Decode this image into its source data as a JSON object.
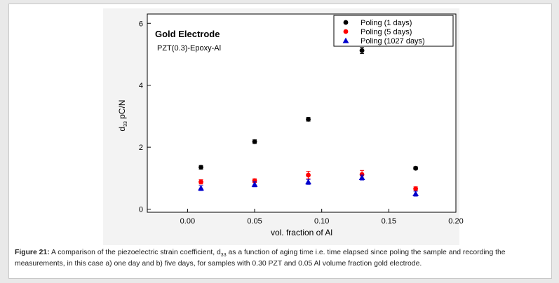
{
  "caption": {
    "label": "Figure 21:",
    "text_before_sub": "A comparison of the piezoelectric strain coefficient, d",
    "subscript": "33",
    "text_after_sub": " as a function of aging time i.e. time elapsed since poling the sample and recording the measurements, in this case a) one day and b) five days, for samples with 0.30 PZT and 0.05 Al volume fraction gold electrode."
  },
  "chart_data": {
    "type": "scatter",
    "title": "Gold Electrode",
    "subtitle": "PZT(0.3)-Epoxy-Al",
    "xlabel": "vol. fraction of Al",
    "ylabel_main": "d",
    "ylabel_sub": "33",
    "ylabel_unit": " pC/N",
    "xlim": [
      -0.03,
      0.2
    ],
    "ylim": [
      -0.1,
      6.3
    ],
    "xticks": [
      0.0,
      0.05,
      0.1,
      0.15,
      0.2
    ],
    "xtick_labels": [
      "0.00",
      "0.05",
      "0.10",
      "0.15",
      "0.20"
    ],
    "yticks": [
      0,
      2,
      4,
      6
    ],
    "ytick_labels": [
      "0",
      "2",
      "4",
      "6"
    ],
    "legend_position": "top-right",
    "grid": false,
    "series": [
      {
        "name": "Poling (1 days)",
        "marker": "circle",
        "color": "#000000",
        "x": [
          0.01,
          0.05,
          0.09,
          0.13,
          0.17
        ],
        "y": [
          1.35,
          2.18,
          2.9,
          5.12,
          1.32
        ],
        "err": [
          0.06,
          0.06,
          0.06,
          0.1,
          0.05
        ]
      },
      {
        "name": "Poling (5 days)",
        "marker": "circle",
        "color": "#ff0000",
        "x": [
          0.01,
          0.05,
          0.09,
          0.13,
          0.17
        ],
        "y": [
          0.88,
          0.92,
          1.1,
          1.12,
          0.66
        ],
        "err": [
          0.07,
          0.06,
          0.12,
          0.13,
          0.06
        ]
      },
      {
        "name": "Poling (1027 days)",
        "marker": "triangle",
        "color": "#0000cc",
        "x": [
          0.01,
          0.05,
          0.09,
          0.13,
          0.17
        ],
        "y": [
          0.68,
          0.8,
          0.88,
          1.02,
          0.5
        ],
        "err": [
          0.08,
          0.08,
          0.08,
          0.08,
          0.08
        ]
      }
    ]
  }
}
